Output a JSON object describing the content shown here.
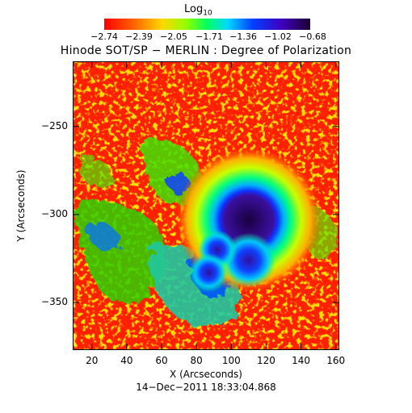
{
  "colorbar": {
    "title_main": "Log",
    "title_sub": "10",
    "tick_labels": [
      "−2.74",
      "−2.39",
      "−2.05",
      "−1.71",
      "−1.36",
      "−1.02",
      "−0.68"
    ]
  },
  "title": "Hinode SOT/SP − MERLIN : Degree of Polarization",
  "xlabel": "X (Arcseconds)",
  "ylabel": "Y (Arcseconds)",
  "timestamp": "14−Dec−2011 18:33:04.868",
  "chart_data": {
    "type": "heatmap",
    "colorscale": "rainbow",
    "colorbar_range": [
      -2.74,
      -0.68
    ],
    "xlim": [
      9,
      162
    ],
    "ylim": [
      -377,
      -213
    ],
    "xticks": [
      20,
      40,
      60,
      80,
      100,
      120,
      140,
      160
    ],
    "xtick_labels": [
      "20",
      "40",
      "60",
      "80",
      "100",
      "120",
      "140",
      "160"
    ],
    "yticks": [
      -250,
      -300,
      -350
    ],
    "ytick_labels": [
      "−250",
      "−300",
      "−350"
    ],
    "features": [
      {
        "label": "sunspot umbra",
        "x": 110,
        "y": -303,
        "value": -0.7
      },
      {
        "label": "pore",
        "x": 110,
        "y": -326,
        "value": -1.0
      },
      {
        "label": "pore",
        "x": 92,
        "y": -320,
        "value": -1.1
      },
      {
        "label": "pore",
        "x": 87,
        "y": -333,
        "value": -1.2
      }
    ]
  }
}
